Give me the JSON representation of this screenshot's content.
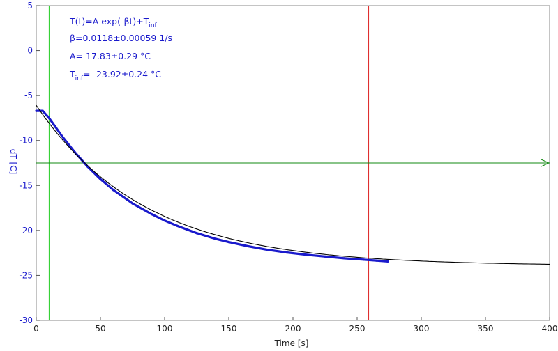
{
  "chart_data": {
    "type": "scatter",
    "xlabel": "Time [s]",
    "ylabel": "dT [C]",
    "xlim": [
      0,
      400
    ],
    "ylim": [
      -30,
      5
    ],
    "xticks": [
      0,
      50,
      100,
      150,
      200,
      250,
      300,
      350,
      400
    ],
    "yticks": [
      5,
      0,
      -5,
      -10,
      -15,
      -20,
      -25,
      -30
    ],
    "xtick_labels": [
      "0",
      "50",
      "100",
      "150",
      "200",
      "250",
      "300",
      "350",
      "400"
    ],
    "ytick_labels": [
      "5",
      "0",
      "-5",
      "-10",
      "-15",
      "-20",
      "-25",
      "-30"
    ],
    "grid": false,
    "annotation": {
      "line1_main": "T(t)=A exp(-βt)+T",
      "line1_sub": "inf",
      "line2": "β=0.0118±0.00059 1/s",
      "line3": "A= 17.83±0.29 °C",
      "line4_main": "T",
      "line4_sub": "inf",
      "line4_rest": "= -23.92±0.24 °C"
    },
    "fit": {
      "A": 17.83,
      "beta": 0.0118,
      "T_inf": -23.92,
      "x_range": [
        0,
        400
      ],
      "color": "#000000"
    },
    "series": [
      {
        "color": "#1a1acc",
        "x": [
          0,
          5,
          10,
          15,
          20,
          30,
          40,
          50,
          60,
          75,
          90,
          100,
          110,
          125,
          140,
          150,
          165,
          180,
          195,
          210,
          225,
          240,
          255,
          265,
          274
        ],
        "y": [
          -6.7,
          -6.7,
          -7.5,
          -8.5,
          -9.5,
          -11.3,
          -12.9,
          -14.3,
          -15.5,
          -17.0,
          -18.2,
          -18.9,
          -19.5,
          -20.3,
          -20.95,
          -21.3,
          -21.75,
          -22.15,
          -22.45,
          -22.7,
          -22.9,
          -23.1,
          -23.25,
          -23.35,
          -23.45
        ]
      }
    ],
    "cursors": [
      {
        "orientation": "vertical",
        "x": 10,
        "color": "#22cc22"
      },
      {
        "orientation": "vertical",
        "x": 259,
        "color": "#dd2222"
      },
      {
        "orientation": "horizontal",
        "y": -12.5,
        "color": "#118811"
      }
    ]
  }
}
